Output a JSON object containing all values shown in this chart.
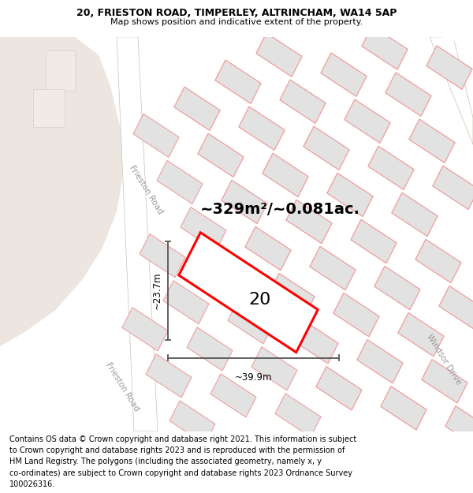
{
  "title_line1": "20, FRIESTON ROAD, TIMPERLEY, ALTRINCHAM, WA14 5AP",
  "title_line2": "Map shows position and indicative extent of the property.",
  "footer_lines": [
    "Contains OS data © Crown copyright and database right 2021. This information is subject",
    "to Crown copyright and database rights 2023 and is reproduced with the permission of",
    "HM Land Registry. The polygons (including the associated geometry, namely x, y",
    "co-ordinates) are subject to Crown copyright and database rights 2023 Ordnance Survey",
    "100026316."
  ],
  "area_label": "~329m²/~0.081ac.",
  "number_label": "20",
  "width_label": "~39.9m",
  "height_label": "~23.7m",
  "road_label_frieston_upper": "Frieston Road",
  "road_label_frieston_lower": "Frieston Road",
  "road_label_windsor": "Windsor Drive",
  "bg_land_color": "#ede5df",
  "bg_white": "#ffffff",
  "block_fill": "#e2e2e2",
  "block_border": "#f0a0a0",
  "highlight_border": "#ff0000",
  "highlight_fill": "#ffffff",
  "dim_color": "#555555",
  "road_label_color": "#999999",
  "title_fontsize": 9,
  "subtitle_fontsize": 8,
  "footer_fontsize": 7,
  "area_fontsize": 14,
  "number_fontsize": 16,
  "dim_fontsize": 8.5,
  "road_fontsize": 7.5
}
